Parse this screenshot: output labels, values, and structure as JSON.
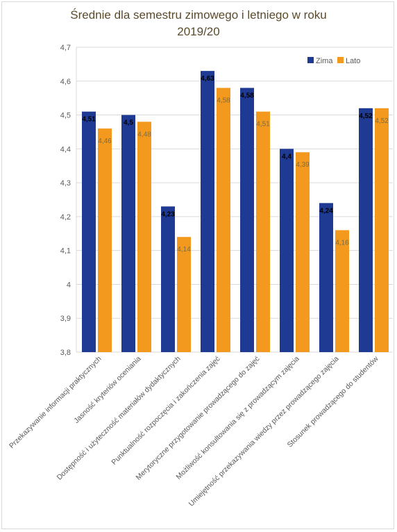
{
  "colors": {
    "zima": "#1f3a93",
    "lato": "#f39a1e",
    "grid": "#d9d9d9",
    "axis": "#595959"
  },
  "chart_data": {
    "type": "bar",
    "title_line1": "Średnie dla semestru  zimowego  i letniego  w roku",
    "title_line2": "2019/20",
    "ylim": [
      3.8,
      4.7
    ],
    "yticks": [
      3.8,
      3.9,
      4.0,
      4.1,
      4.2,
      4.3,
      4.4,
      4.5,
      4.6,
      4.7
    ],
    "ytick_labels": [
      "3,8",
      "3,9",
      "4",
      "4,1",
      "4,2",
      "4,3",
      "4,4",
      "4,5",
      "4,6",
      "4,7"
    ],
    "categories": [
      "Przekazywanie informacji praktycznych",
      "Jasność kryteriów oceniania",
      "Dostępność i użyteczność materiałów dydaktycznych",
      "Punktualność rozpoczęcia i zakończenia zajęć",
      "Merytoryczne przygotowanie prowadzącego do zajęć",
      "Możliwość konsultowania się z prowadzącym zajęcia",
      "Umiejętność przekazywania wiedzy przez prowadzącego zajęcia",
      "Stosunek prowadzącego do studentów"
    ],
    "series": [
      {
        "name": "Zima",
        "values": [
          4.51,
          4.5,
          4.23,
          4.63,
          4.58,
          4.4,
          4.24,
          4.52
        ],
        "labels": [
          "4,51",
          "4,5",
          "4,23",
          "4,63",
          "4,58",
          "4,4",
          "4,24",
          "4,52"
        ]
      },
      {
        "name": "Lato",
        "values": [
          4.46,
          4.48,
          4.14,
          4.58,
          4.51,
          4.39,
          4.16,
          4.52
        ],
        "labels": [
          "4,46",
          "4,48",
          "4,14",
          "4,58",
          "4,51",
          "4,39",
          "4,16",
          "4,52"
        ]
      }
    ],
    "grid": true,
    "legend": "top-right"
  }
}
